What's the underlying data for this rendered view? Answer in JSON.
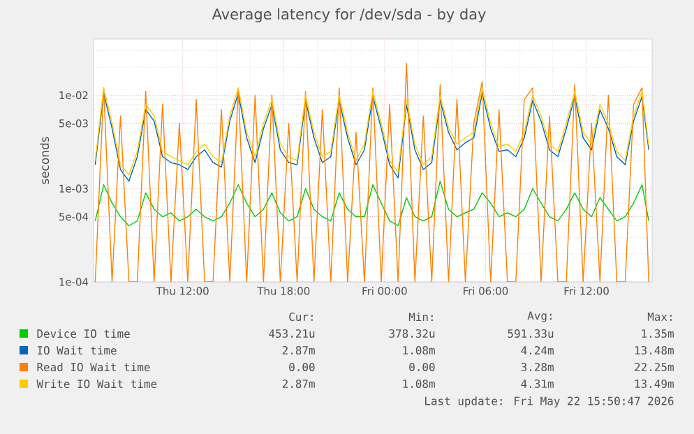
{
  "chart_data": {
    "type": "line",
    "title": "Average latency for /dev/sda - by day",
    "ylabel": "seconds",
    "log": "y",
    "grid": true,
    "legend": "bottom",
    "xlim": [
      "2026-05-21T06:42",
      "2026-05-22T15:54"
    ],
    "ylim": [
      0.0001,
      0.04
    ],
    "xticks": [
      {
        "value": "2026-05-21T12:00",
        "label": "Thu 12:00"
      },
      {
        "value": "2026-05-21T18:00",
        "label": "Thu 18:00"
      },
      {
        "value": "2026-05-22T00:00",
        "label": "Fri 00:00"
      },
      {
        "value": "2026-05-22T06:00",
        "label": "Fri 06:00"
      },
      {
        "value": "2026-05-22T12:00",
        "label": "Fri 12:00"
      }
    ],
    "yticks": [
      {
        "value": 0.0001,
        "label": "1e-04"
      },
      {
        "value": 0.0005,
        "label": "5e-04"
      },
      {
        "value": 0.001,
        "label": "1e-03"
      },
      {
        "value": 0.005,
        "label": "5e-03"
      },
      {
        "value": 0.01,
        "label": "1e-02"
      }
    ],
    "x": [
      "2026-05-21T06:48",
      "2026-05-21T07:18",
      "2026-05-21T07:48",
      "2026-05-21T08:18",
      "2026-05-21T08:48",
      "2026-05-21T09:18",
      "2026-05-21T09:48",
      "2026-05-21T10:18",
      "2026-05-21T10:48",
      "2026-05-21T11:18",
      "2026-05-21T11:48",
      "2026-05-21T12:18",
      "2026-05-21T12:48",
      "2026-05-21T13:18",
      "2026-05-21T13:48",
      "2026-05-21T14:18",
      "2026-05-21T14:48",
      "2026-05-21T15:18",
      "2026-05-21T15:48",
      "2026-05-21T16:18",
      "2026-05-21T16:48",
      "2026-05-21T17:18",
      "2026-05-21T17:48",
      "2026-05-21T18:18",
      "2026-05-21T18:48",
      "2026-05-21T19:18",
      "2026-05-21T19:48",
      "2026-05-21T20:18",
      "2026-05-21T20:48",
      "2026-05-21T21:18",
      "2026-05-21T21:48",
      "2026-05-21T22:18",
      "2026-05-21T22:48",
      "2026-05-21T23:18",
      "2026-05-21T23:48",
      "2026-05-22T00:18",
      "2026-05-22T00:48",
      "2026-05-22T01:18",
      "2026-05-22T01:48",
      "2026-05-22T02:18",
      "2026-05-22T02:48",
      "2026-05-22T03:18",
      "2026-05-22T03:48",
      "2026-05-22T04:18",
      "2026-05-22T04:48",
      "2026-05-22T05:18",
      "2026-05-22T05:48",
      "2026-05-22T06:18",
      "2026-05-22T06:48",
      "2026-05-22T07:18",
      "2026-05-22T07:48",
      "2026-05-22T08:18",
      "2026-05-22T08:48",
      "2026-05-22T09:18",
      "2026-05-22T09:48",
      "2026-05-22T10:18",
      "2026-05-22T10:48",
      "2026-05-22T11:18",
      "2026-05-22T11:48",
      "2026-05-22T12:18",
      "2026-05-22T12:48",
      "2026-05-22T13:18",
      "2026-05-22T13:48",
      "2026-05-22T14:18",
      "2026-05-22T14:48",
      "2026-05-22T15:18",
      "2026-05-22T15:42"
    ],
    "series": [
      {
        "name": "Device IO time",
        "color": "#00cc00",
        "values": [
          0.00045,
          0.0011,
          0.0007,
          0.0005,
          0.0004,
          0.00045,
          0.0009,
          0.0006,
          0.0005,
          0.00055,
          0.00045,
          0.0005,
          0.0006,
          0.0005,
          0.00045,
          0.0005,
          0.0007,
          0.0011,
          0.0007,
          0.0005,
          0.0006,
          0.0009,
          0.00055,
          0.00045,
          0.0005,
          0.001,
          0.0006,
          0.0005,
          0.00045,
          0.0009,
          0.0006,
          0.0005,
          0.0005,
          0.0011,
          0.0007,
          0.00045,
          0.0004,
          0.0008,
          0.0005,
          0.00045,
          0.0005,
          0.0012,
          0.0006,
          0.0005,
          0.00055,
          0.0006,
          0.0009,
          0.0007,
          0.0005,
          0.00055,
          0.0005,
          0.0006,
          0.001,
          0.0007,
          0.0005,
          0.00045,
          0.0006,
          0.0009,
          0.0006,
          0.0005,
          0.0008,
          0.0006,
          0.00045,
          0.0005,
          0.0007,
          0.0011,
          0.00045
        ]
      },
      {
        "name": "IO Wait time",
        "color": "#0066b3",
        "values": [
          0.0018,
          0.0105,
          0.0044,
          0.0016,
          0.0012,
          0.0022,
          0.007,
          0.0053,
          0.0022,
          0.0019,
          0.0018,
          0.0016,
          0.0022,
          0.0026,
          0.0019,
          0.0017,
          0.0053,
          0.0105,
          0.0035,
          0.0019,
          0.0044,
          0.0079,
          0.0026,
          0.0019,
          0.0018,
          0.0088,
          0.0035,
          0.0019,
          0.0022,
          0.0088,
          0.0035,
          0.0018,
          0.0026,
          0.0097,
          0.0044,
          0.0018,
          0.0013,
          0.0079,
          0.0026,
          0.0016,
          0.0019,
          0.0088,
          0.004,
          0.0026,
          0.0031,
          0.0035,
          0.0105,
          0.0044,
          0.0025,
          0.0026,
          0.0022,
          0.0035,
          0.0088,
          0.0053,
          0.0026,
          0.0022,
          0.0044,
          0.0097,
          0.0035,
          0.0026,
          0.007,
          0.0044,
          0.0022,
          0.0018,
          0.0053,
          0.0097,
          0.0026
        ]
      },
      {
        "name": "Read IO Wait time",
        "color": "#ff8000",
        "values": [
          0.0001,
          0.012,
          0.0001,
          0.006,
          0.0001,
          0.0001,
          0.011,
          0.0001,
          0.008,
          0.0001,
          0.005,
          0.0001,
          0.009,
          0.0001,
          0.0001,
          0.007,
          0.0001,
          0.012,
          0.0001,
          0.01,
          0.0001,
          0.01,
          0.0001,
          0.005,
          0.0001,
          0.011,
          0.0001,
          0.007,
          0.0001,
          0.012,
          0.0001,
          0.004,
          0.0001,
          0.012,
          0.0001,
          0.008,
          0.0001,
          0.022,
          0.0001,
          0.006,
          0.0001,
          0.013,
          0.0001,
          0.009,
          0.0001,
          0.005,
          0.014,
          0.0001,
          0.007,
          0.0001,
          0.0001,
          0.009,
          0.012,
          0.0001,
          0.006,
          0.0001,
          0.0001,
          0.013,
          0.0001,
          0.005,
          0.0001,
          0.01,
          0.0001,
          0.0001,
          0.008,
          0.012,
          0.0001
        ]
      },
      {
        "name": "Write IO Wait time",
        "color": "#ffcc00",
        "values": [
          0.002,
          0.012,
          0.005,
          0.0018,
          0.0014,
          0.0025,
          0.008,
          0.006,
          0.0025,
          0.0022,
          0.002,
          0.0018,
          0.0025,
          0.003,
          0.0022,
          0.0019,
          0.006,
          0.012,
          0.004,
          0.0022,
          0.005,
          0.009,
          0.003,
          0.0022,
          0.002,
          0.01,
          0.004,
          0.0022,
          0.0025,
          0.01,
          0.004,
          0.002,
          0.003,
          0.011,
          0.005,
          0.002,
          0.0015,
          0.009,
          0.003,
          0.0018,
          0.0022,
          0.01,
          0.0045,
          0.003,
          0.0035,
          0.004,
          0.012,
          0.005,
          0.0028,
          0.003,
          0.0025,
          0.004,
          0.01,
          0.006,
          0.003,
          0.0025,
          0.005,
          0.011,
          0.004,
          0.003,
          0.008,
          0.005,
          0.0025,
          0.002,
          0.006,
          0.011,
          0.0029
        ]
      }
    ],
    "annotations": [
      "Cur:",
      "Min:",
      "Avg:",
      "Max:",
      "453.21u",
      "378.32u",
      "591.33u",
      "1.35m",
      "2.87m",
      "1.08m",
      "4.24m",
      "13.48m",
      "0.00",
      "0.00",
      "3.28m",
      "22.25m",
      "2.87m",
      "1.08m",
      "4.31m",
      "13.49m",
      "Last update: Fri May 22 15:50:47 2026"
    ]
  }
}
